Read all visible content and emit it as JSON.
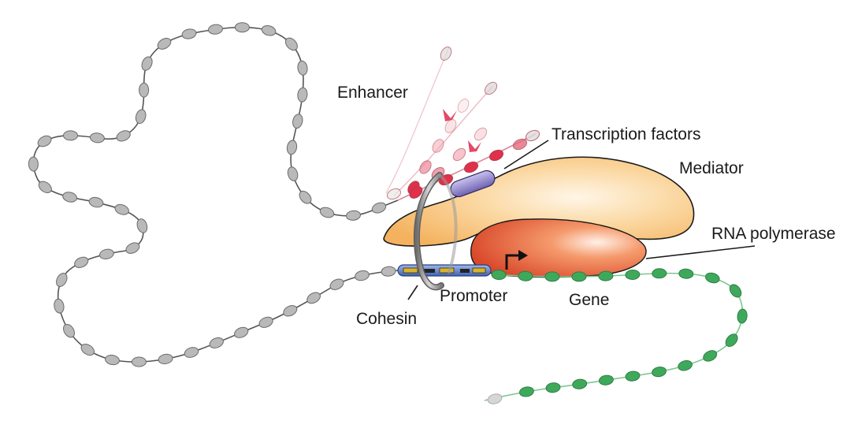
{
  "diagram": {
    "labels": {
      "enhancer": "Enhancer",
      "transcription_factors": "Transcription factors",
      "mediator": "Mediator",
      "rna_polymerase": "RNA polymerase",
      "promoter": "Promoter",
      "gene": "Gene",
      "cohesin": "Cohesin"
    },
    "colors": {
      "nucleosome": "#b9b9b9",
      "nucleosome_edge": "#6a6a6a",
      "dna_strand": "#555555",
      "enhancer_red": "#e0304a",
      "gene_green": "#3fa95b",
      "mediator_fill": "#f8c77f",
      "polymerase_fill": "#ea6a3c",
      "tf_purple": "#8a7fc4",
      "promoter_blue": "#5a7fc6",
      "cohesin_ring": "#8f8f8f"
    }
  }
}
